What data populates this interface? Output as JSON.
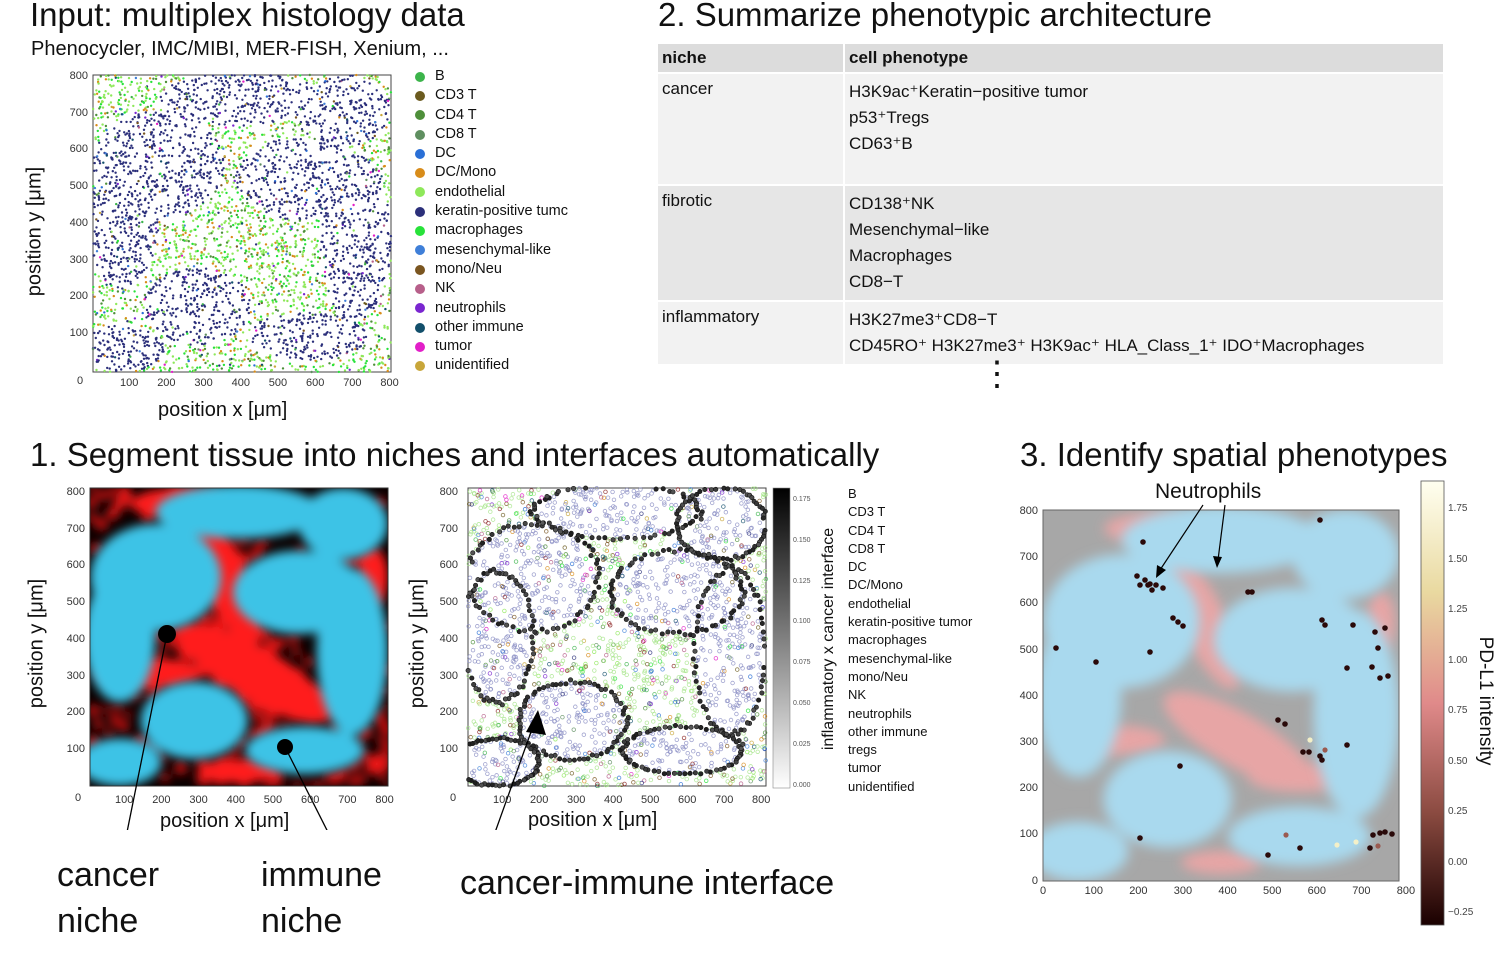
{
  "input": {
    "title": "Input: multiplex histology data",
    "subtitle": "Phenocycler, IMC/MIBI, MER-FISH, Xenium, ...",
    "xlabel": "position x [μm]",
    "ylabel": "position y [μm]",
    "y_ticks": [
      "800",
      "700",
      "600",
      "500",
      "400",
      "300",
      "200",
      "100"
    ],
    "x_ticks": [
      "100",
      "200",
      "300",
      "400",
      "500",
      "600",
      "700",
      "800"
    ],
    "zero": "0",
    "legend": [
      {
        "label": "B",
        "color": "#3cb44b"
      },
      {
        "label": "CD3 T",
        "color": "#6b5b1f"
      },
      {
        "label": "CD4 T",
        "color": "#4e8f3a"
      },
      {
        "label": "CD8 T",
        "color": "#5f8f60"
      },
      {
        "label": "DC",
        "color": "#2a6fd6"
      },
      {
        "label": "DC/Mono",
        "color": "#d88c1a"
      },
      {
        "label": "endothelial",
        "color": "#8ee85a"
      },
      {
        "label": "keratin-positive tumc",
        "color": "#2b2f7a"
      },
      {
        "label": "macrophages",
        "color": "#27e23a"
      },
      {
        "label": "mesenchymal-like",
        "color": "#3f7fd8"
      },
      {
        "label": "mono/Neu",
        "color": "#7a5520"
      },
      {
        "label": "NK",
        "color": "#b75f8a"
      },
      {
        "label": "neutrophils",
        "color": "#7a26d0"
      },
      {
        "label": "other immune",
        "color": "#124f6b"
      },
      {
        "label": "tumor",
        "color": "#e21fc8"
      },
      {
        "label": "unidentified",
        "color": "#c8a63a"
      }
    ]
  },
  "summary": {
    "title": "2. Summarize phenotypic architecture",
    "col_niche": "niche",
    "col_phenotype": "cell phenotype",
    "rows": [
      {
        "niche": "cancer",
        "phenotypes": [
          "H3K9ac⁺Keratin−positive tumor",
          "p53⁺Tregs",
          "CD63⁺B"
        ]
      },
      {
        "niche": "fibrotic",
        "phenotypes": [
          "CD138⁺NK",
          "Mesenchymal−like",
          "Macrophages",
          "CD8−T"
        ]
      },
      {
        "niche": "inflammatory",
        "phenotypes": [
          "H3K27me3⁺CD8−T",
          "CD45RO⁺ H3K27me3⁺ H3K9ac⁺ HLA_Class_1⁺ IDO⁺Macrophages"
        ]
      }
    ],
    "ellipsis": "⋮"
  },
  "segment": {
    "title": "1. Segment tissue into niches and interfaces automatically",
    "xlabel": "position x [μm]",
    "ylabel": "position y [μm]",
    "cbar_label": "inflammatory x cancer interface",
    "cbar_ticks": [
      "0.175",
      "0.150",
      "0.125",
      "0.100",
      "0.075",
      "0.050",
      "0.025",
      "0.000"
    ],
    "legend": [
      {
        "label": "B",
        "color": "#3cb44b"
      },
      {
        "label": "CD3 T",
        "color": "#6b5b1f"
      },
      {
        "label": "CD4 T",
        "color": "#4e8f3a"
      },
      {
        "label": "CD8 T",
        "color": "#5f8f60"
      },
      {
        "label": "DC",
        "color": "#2a6fd6"
      },
      {
        "label": "DC/Mono",
        "color": "#d88c1a"
      },
      {
        "label": "endothelial",
        "color": "#8ee85a"
      },
      {
        "label": "keratin-positive tumor",
        "color": "#2b2f7a"
      },
      {
        "label": "macrophages",
        "color": "#27e23a"
      },
      {
        "label": "mesenchymal-like",
        "color": "#3f7fd8"
      },
      {
        "label": "mono/Neu",
        "color": "#7a5520"
      },
      {
        "label": "NK",
        "color": "#b75f8a"
      },
      {
        "label": "neutrophils",
        "color": "#7a26d0"
      },
      {
        "label": "other immune",
        "color": "#124f6b"
      },
      {
        "label": "tregs",
        "color": "#8a2020"
      },
      {
        "label": "tumor",
        "color": "#e21fc8"
      },
      {
        "label": "unidentified",
        "color": "#c8a63a"
      }
    ],
    "cancer_niche": [
      "cancer",
      "niche"
    ],
    "immune_niche": [
      "immune",
      "niche"
    ],
    "interface_label": "cancer-immune interface"
  },
  "spatial": {
    "title": "3. Identify spatial phenotypes",
    "annotation": "Neutrophils",
    "cbar_label": "PD-L1 intensity",
    "cbar_ticks": [
      "1.75",
      "1.50",
      "1.25",
      "1.00",
      "0.75",
      "0.50",
      "0.25",
      "0.00",
      "−0.25"
    ],
    "y_ticks": [
      "800",
      "700",
      "600",
      "500",
      "400",
      "300",
      "200",
      "100",
      "0"
    ],
    "x_ticks": [
      "0",
      "100",
      "200",
      "300",
      "400",
      "500",
      "600",
      "700",
      "800"
    ]
  },
  "colors": {
    "cancer_blue": "#3cc3e6",
    "immune_red": "#ff1a1a",
    "light_blue": "#a9d9ee",
    "light_red": "#f3a5a5",
    "bg_gray": "#a7a7a7"
  }
}
